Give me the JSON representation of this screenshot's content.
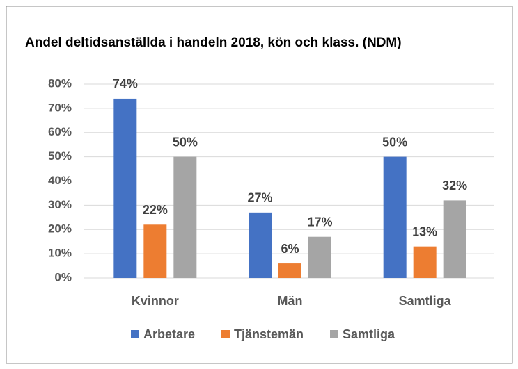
{
  "chart_data": {
    "type": "bar",
    "title": "Andel deltidsanställda i handeln 2018, kön och klass. (NDM)",
    "categories": [
      "Kvinnor",
      "Män",
      "Samtliga"
    ],
    "series": [
      {
        "name": "Arbetare",
        "color": "#4472c4",
        "values": [
          74,
          27,
          50
        ],
        "value_labels": [
          "74%",
          "27%",
          "50%"
        ]
      },
      {
        "name": "Tjänstemän",
        "color": "#ed7d31",
        "values": [
          22,
          6,
          13
        ],
        "value_labels": [
          "22%",
          "6%",
          "13%"
        ]
      },
      {
        "name": "Samtliga",
        "color": "#a5a5a5",
        "values": [
          50,
          17,
          32
        ],
        "value_labels": [
          "50%",
          "17%",
          "32%"
        ]
      }
    ],
    "ylim": [
      0,
      80
    ],
    "yticks": [
      {
        "value": 0,
        "label": "0%"
      },
      {
        "value": 10,
        "label": "10%"
      },
      {
        "value": 20,
        "label": "20%"
      },
      {
        "value": 30,
        "label": "30%"
      },
      {
        "value": 40,
        "label": "40%"
      },
      {
        "value": 50,
        "label": "50%"
      },
      {
        "value": 60,
        "label": "60%"
      },
      {
        "value": 70,
        "label": "70%"
      },
      {
        "value": 80,
        "label": "80%"
      }
    ],
    "grid": true,
    "legend": "bottom"
  }
}
